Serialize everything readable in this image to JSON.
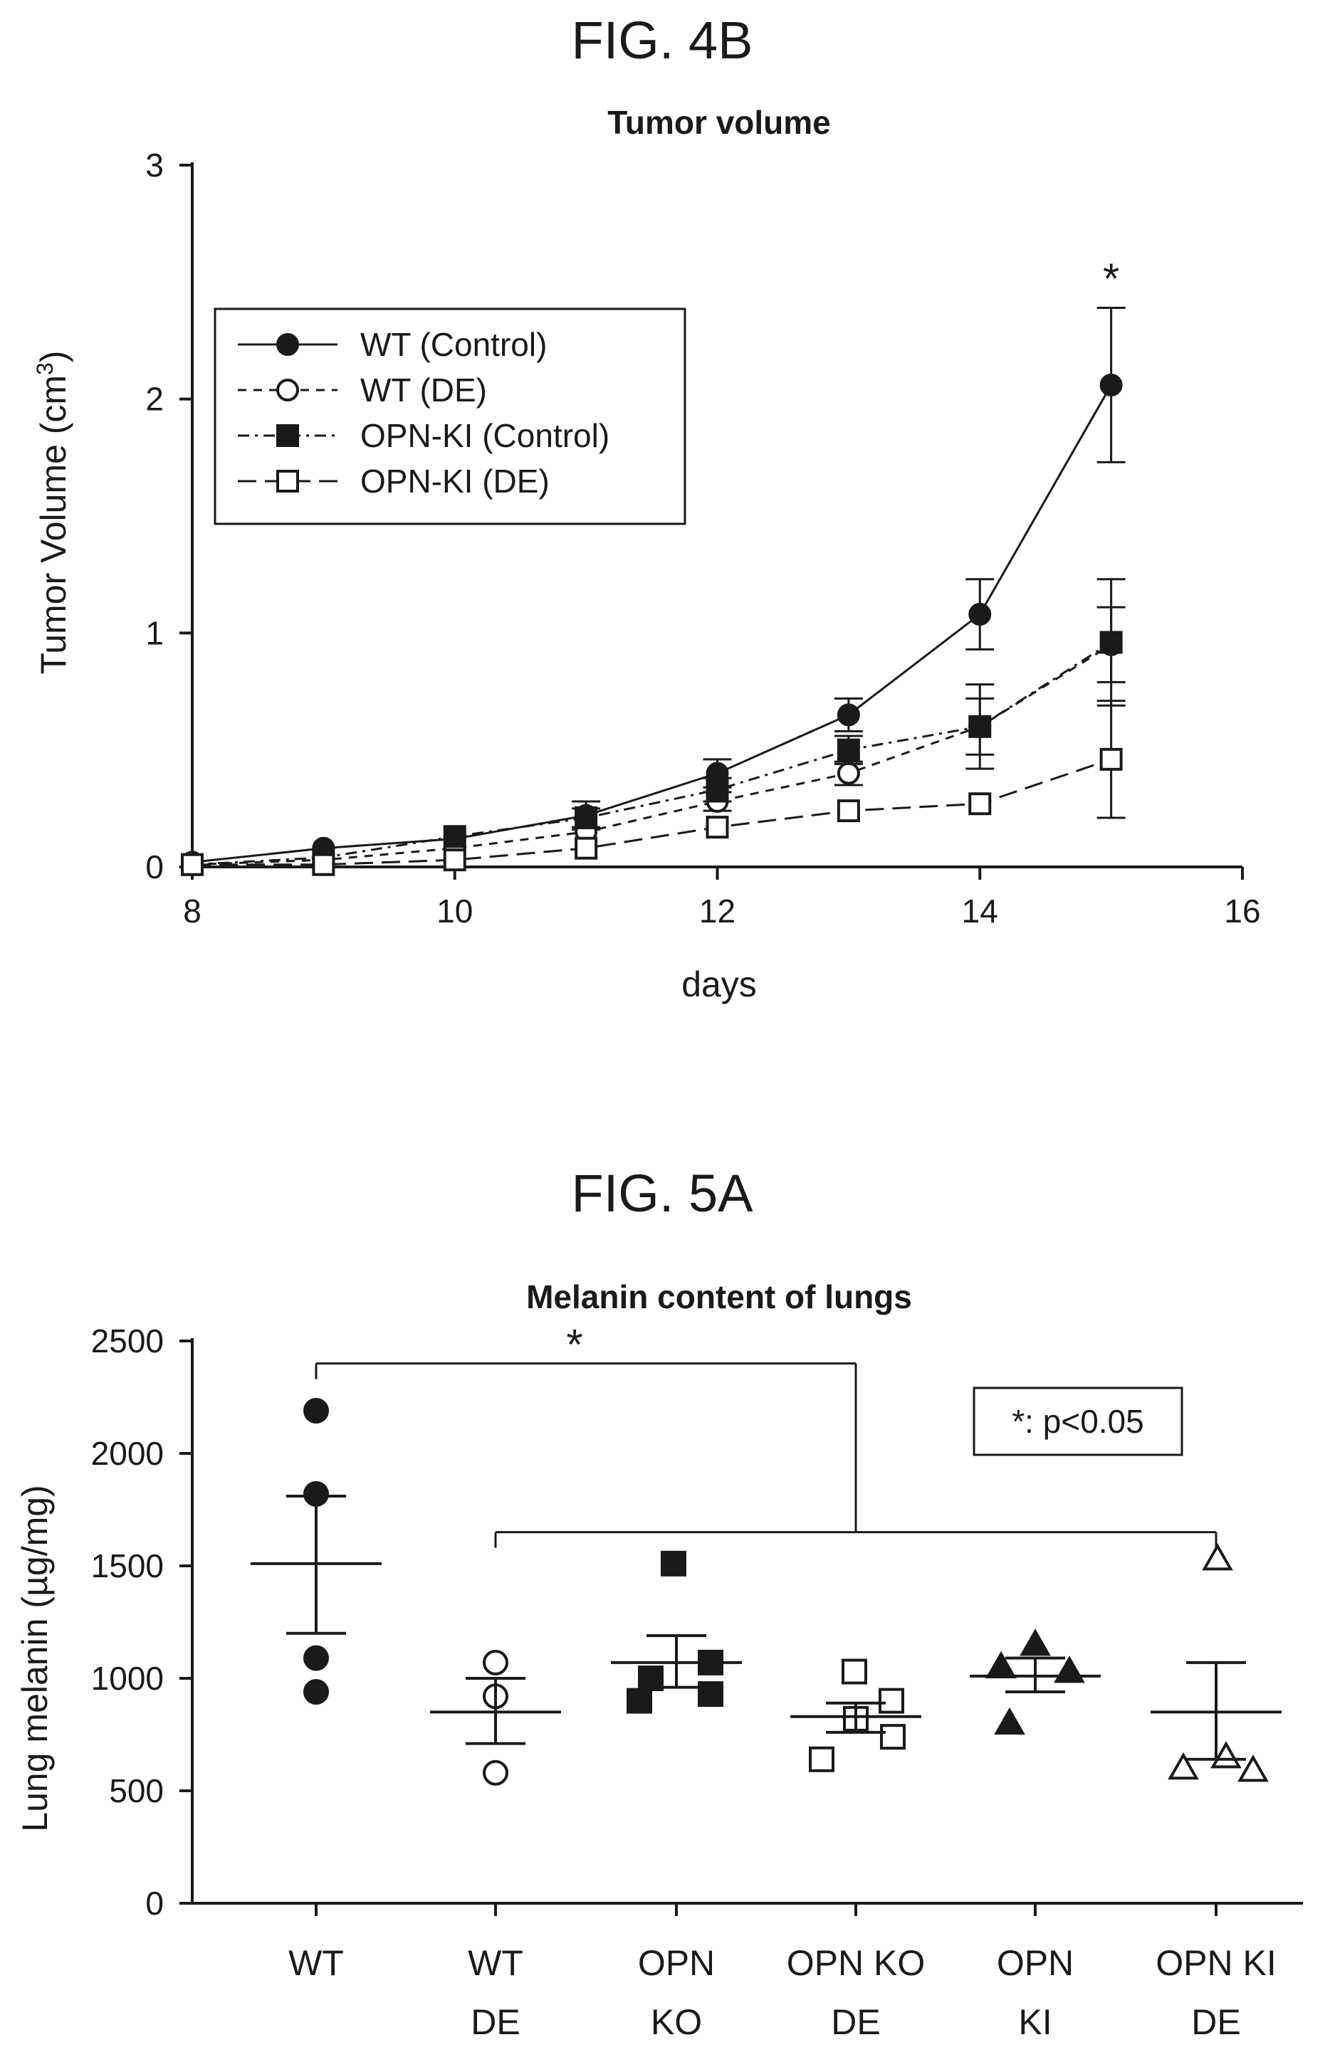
{
  "chart_data": [
    {
      "type": "line",
      "figure_label": "FIG. 4B",
      "title": "Tumor volume",
      "xlabel": "days",
      "ylabel": "Tumor Volume (cm",
      "ylabel_sup": "3",
      "ylabel_close": ")",
      "xlim": [
        8,
        16
      ],
      "ylim": [
        0,
        3
      ],
      "xticks": [
        8,
        10,
        12,
        14,
        16
      ],
      "yticks": [
        0,
        1,
        2,
        3
      ],
      "legend_position": "upper-left",
      "significance_marker": {
        "x": 15,
        "label": "*"
      },
      "series": [
        {
          "name": "WT (Control)",
          "marker": "filled-circle",
          "line": "solid",
          "x": [
            8,
            9,
            10,
            11,
            12,
            13,
            14,
            15
          ],
          "y": [
            0.02,
            0.08,
            0.12,
            0.22,
            0.4,
            0.65,
            1.08,
            2.06
          ],
          "err": [
            0.02,
            0.02,
            0.03,
            0.06,
            0.06,
            0.07,
            0.15,
            0.33
          ]
        },
        {
          "name": "WT (DE)",
          "marker": "open-circle",
          "line": "dashed",
          "x": [
            8,
            9,
            10,
            11,
            12,
            13,
            14,
            15
          ],
          "y": [
            0.01,
            0.03,
            0.08,
            0.15,
            0.28,
            0.4,
            0.6,
            0.95
          ],
          "err": [
            0.01,
            0.01,
            0.02,
            0.03,
            0.04,
            0.05,
            0.12,
            0.16
          ]
        },
        {
          "name": "OPN-KI (Control)",
          "marker": "filled-square",
          "line": "dash-dot",
          "x": [
            8,
            9,
            10,
            11,
            12,
            13,
            14,
            15
          ],
          "y": [
            0.01,
            0.04,
            0.13,
            0.21,
            0.33,
            0.5,
            0.6,
            0.96
          ],
          "err": [
            0.01,
            0.01,
            0.03,
            0.04,
            0.05,
            0.06,
            0.18,
            0.27
          ]
        },
        {
          "name": "OPN-KI (DE)",
          "marker": "open-square",
          "line": "long-dash",
          "x": [
            8,
            9,
            10,
            11,
            12,
            13,
            14,
            15
          ],
          "y": [
            0.01,
            0.01,
            0.03,
            0.08,
            0.17,
            0.24,
            0.27,
            0.46
          ],
          "err": [
            0.005,
            0.005,
            0.01,
            0.02,
            0.02,
            0.02,
            0.02,
            0.25
          ]
        }
      ]
    },
    {
      "type": "scatter",
      "figure_label": "FIG. 5A",
      "title": "Melanin content of lungs",
      "ylabel": "Lung melanin (µg/mg)",
      "ylim": [
        0,
        2500
      ],
      "yticks": [
        0,
        500,
        1000,
        1500,
        2000,
        2500
      ],
      "significance_label": "*",
      "annotation": "*: p<0.05",
      "groups": [
        {
          "label_line1": "WT",
          "label_line2": "",
          "marker": "filled-circle",
          "points": [
            2190,
            1820,
            1090,
            940
          ],
          "mean": 1510,
          "sem_low": 1200,
          "sem_high": 1810
        },
        {
          "label_line1": "WT",
          "label_line2": "DE",
          "marker": "open-circle",
          "points": [
            1070,
            920,
            580
          ],
          "mean": 850,
          "sem_low": 710,
          "sem_high": 1000
        },
        {
          "label_line1": "OPN",
          "label_line2": "KO",
          "marker": "filled-square",
          "points": [
            1510,
            1070,
            1000,
            930,
            900
          ],
          "mean": 1070,
          "sem_low": 960,
          "sem_high": 1190
        },
        {
          "label_line1": "OPN KO",
          "label_line2": "DE",
          "marker": "open-square",
          "points": [
            1030,
            900,
            820,
            740,
            640
          ],
          "mean": 830,
          "sem_low": 760,
          "sem_high": 890
        },
        {
          "label_line1": "OPN",
          "label_line2": "KI",
          "marker": "filled-triangle",
          "points": [
            1150,
            1050,
            1030,
            800
          ],
          "mean": 1010,
          "sem_low": 940,
          "sem_high": 1090
        },
        {
          "label_line1": "OPN KI",
          "label_line2": "DE",
          "marker": "open-triangle",
          "points": [
            1530,
            650,
            600,
            590
          ],
          "mean": 850,
          "sem_low": 640,
          "sem_high": 1070
        }
      ],
      "comparison_bracket": {
        "from_group": 0,
        "to_groups": [
          1,
          2,
          3,
          4,
          5
        ],
        "upper_y": 2400,
        "lower_y": 1650
      }
    }
  ]
}
